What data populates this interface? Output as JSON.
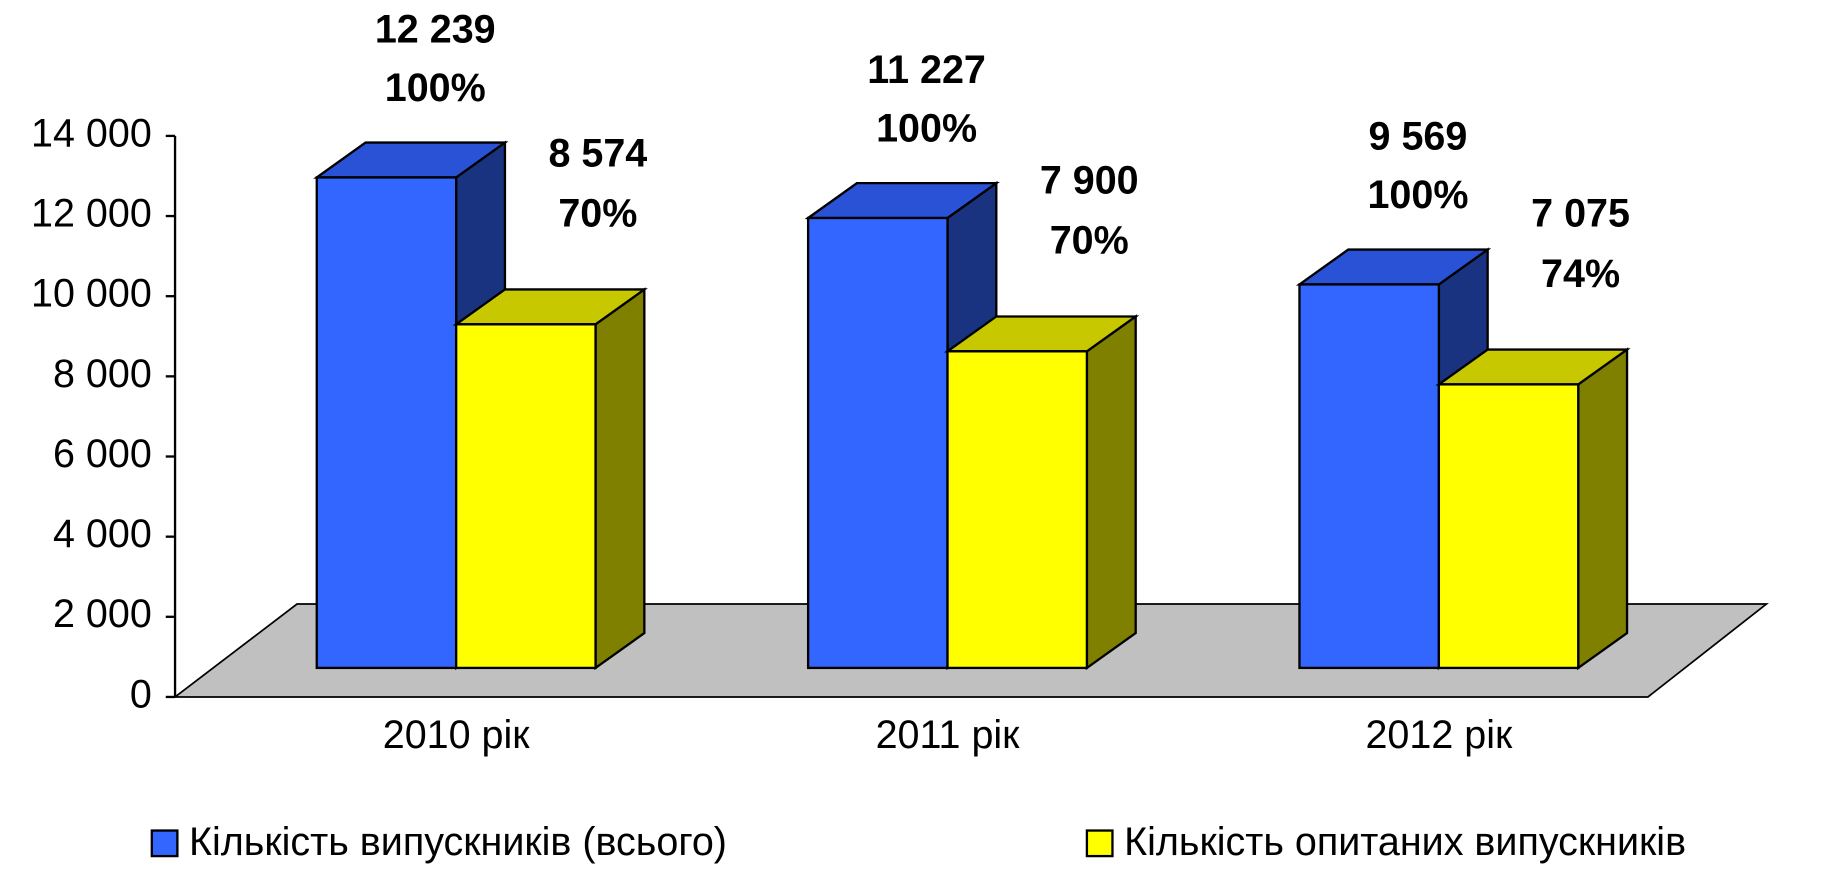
{
  "chart_data": {
    "type": "bar3d",
    "categories": [
      "2010 рік",
      "2011 рік",
      "2012 рік"
    ],
    "series": [
      {
        "name": "Кількість випускників (всього)",
        "color": "#3366ff",
        "top_color": "#2a52d6",
        "side_color": "#1a3380",
        "values": [
          12239,
          11227,
          9569
        ],
        "value_labels": [
          "12 239",
          "11 227",
          "9 569"
        ],
        "share_labels": [
          "100%",
          "100%",
          "100%"
        ]
      },
      {
        "name": "Кількість опитаних випускників",
        "color": "#ffff00",
        "top_color": "#c8c800",
        "side_color": "#808000",
        "values": [
          8574,
          7900,
          7075
        ],
        "value_labels": [
          "8 574",
          "7 900",
          "7 075"
        ],
        "share_labels": [
          "70%",
          "70%",
          "74%"
        ]
      }
    ],
    "ylim": [
      0,
      14000
    ],
    "yticks": [
      0,
      {
        "value": 2000,
        "label": "2 000"
      },
      {
        "value": 4000,
        "label": "4 000"
      },
      {
        "value": 6000,
        "label": "6 000"
      },
      {
        "value": 8000,
        "label": "8 000"
      },
      {
        "value": 10000,
        "label": "10 000"
      },
      {
        "value": 12000,
        "label": "12 000"
      },
      {
        "value": 14000,
        "label": "14 000"
      }
    ],
    "grid": false,
    "legend": "bottom",
    "floor_color": "#c0c0c0"
  }
}
